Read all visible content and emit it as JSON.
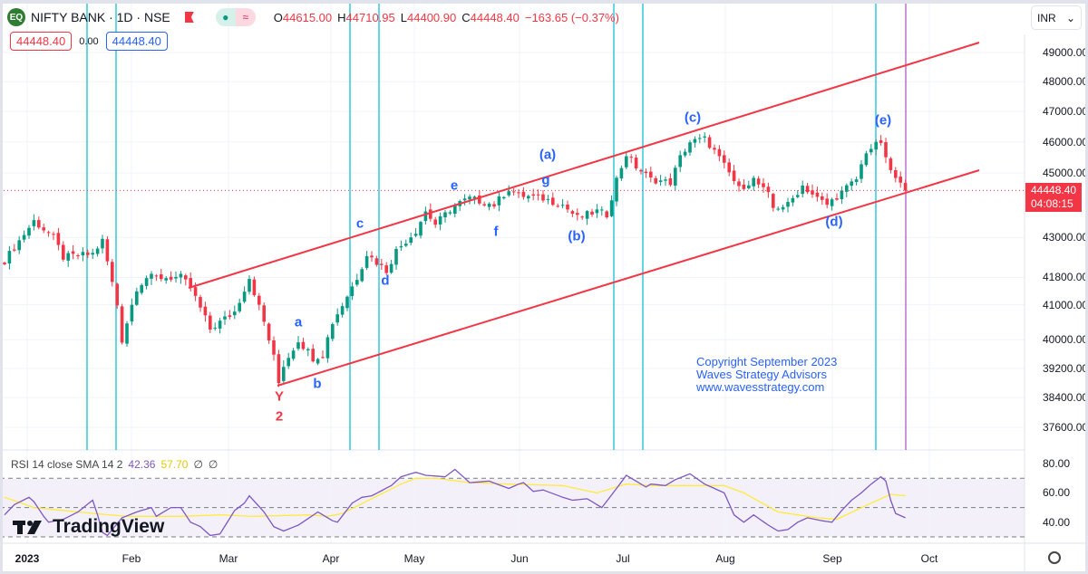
{
  "header": {
    "symbol": "NIFTY BANK · 1D · NSE",
    "logo_text": "EQ",
    "open_label": "O",
    "open": "44615.00",
    "high_label": "H",
    "high": "44710.95",
    "low_label": "L",
    "low": "44400.90",
    "close_label": "C",
    "close": "44448.40",
    "change": "−163.65 (−0.37%)",
    "market_status_icon": "●",
    "indicator_icon": "≈"
  },
  "order": {
    "sell_price": "44448.40",
    "spread": "0.00",
    "buy_price": "44448.40"
  },
  "currency": {
    "label": "INR",
    "chevron": "⌄"
  },
  "price_axis": {
    "ticks": [
      "49000.00",
      "48000.00",
      "47000.00",
      "46000.00",
      "45000.00",
      "43000.00",
      "41800.00",
      "41000.00",
      "40000.00",
      "39200.00",
      "38400.00",
      "37600.00"
    ],
    "last_price": "44448.40",
    "countdown": "04:08:15"
  },
  "rsi": {
    "label": "RSI 14 close SMA 14 2",
    "rsi_value": "42.36",
    "sma_value": "57.70",
    "extra1": "∅",
    "extra2": "∅",
    "ticks": [
      "80.00",
      "60.00",
      "40.00"
    ]
  },
  "time_axis": {
    "labels": [
      "2023",
      "Feb",
      "Mar",
      "Apr",
      "May",
      "Jun",
      "Jul",
      "Aug",
      "Sep",
      "Oct"
    ]
  },
  "branding": {
    "name": "TradingView"
  },
  "annotations": {
    "a": "a",
    "b": "b",
    "Y": "Y",
    "two": "2",
    "c": "c",
    "d": "d",
    "e": "e",
    "f": "f",
    "g": "g",
    "pa": "(a)",
    "pb": "(b)",
    "pc": "(c)",
    "pd": "(d)",
    "pe": "(e)"
  },
  "copyright": {
    "line1": "Copyright September 2023",
    "line2": "Waves Strategy Advisors",
    "line3": "www.wavesstrategy.com"
  },
  "colors": {
    "up": "#089981",
    "down": "#f23645",
    "channel": "#f23645",
    "cycle": "#00bcd4",
    "rsi": "#7e57c2",
    "sma": "#ffeb3b"
  },
  "chart_data": {
    "type": "candlestick",
    "days": 185,
    "close_keypoints": [
      [
        0,
        42300
      ],
      [
        6,
        43500
      ],
      [
        10,
        43000
      ],
      [
        12,
        42400
      ],
      [
        18,
        42500
      ],
      [
        20,
        42900
      ],
      [
        23,
        41000
      ],
      [
        24,
        40000
      ],
      [
        27,
        41500
      ],
      [
        29,
        41800
      ],
      [
        36,
        41800
      ],
      [
        38,
        41500
      ],
      [
        42,
        40300
      ],
      [
        47,
        40800
      ],
      [
        50,
        41800
      ],
      [
        53,
        40500
      ],
      [
        55,
        39500
      ],
      [
        56,
        38800
      ],
      [
        57,
        39300
      ],
      [
        60,
        40000
      ],
      [
        63,
        39500
      ],
      [
        65,
        39600
      ],
      [
        67,
        40500
      ],
      [
        69,
        41000
      ],
      [
        72,
        41800
      ],
      [
        74,
        42500
      ],
      [
        78,
        42000
      ],
      [
        80,
        42600
      ],
      [
        84,
        43200
      ],
      [
        86,
        43800
      ],
      [
        88,
        43400
      ],
      [
        92,
        44000
      ],
      [
        95,
        44200
      ],
      [
        100,
        44000
      ],
      [
        103,
        44500
      ],
      [
        105,
        44300
      ],
      [
        110,
        44200
      ],
      [
        114,
        44000
      ],
      [
        117,
        43600
      ],
      [
        121,
        43800
      ],
      [
        123,
        43700
      ],
      [
        125,
        44800
      ],
      [
        127,
        45600
      ],
      [
        129,
        45200
      ],
      [
        132,
        44800
      ],
      [
        136,
        44700
      ],
      [
        138,
        45500
      ],
      [
        140,
        46000
      ],
      [
        143,
        46100
      ],
      [
        145,
        45700
      ],
      [
        148,
        45000
      ],
      [
        150,
        44500
      ],
      [
        153,
        44800
      ],
      [
        156,
        44300
      ],
      [
        157,
        43900
      ],
      [
        160,
        44000
      ],
      [
        163,
        44600
      ],
      [
        166,
        44200
      ],
      [
        168,
        44000
      ],
      [
        171,
        44400
      ],
      [
        174,
        44800
      ],
      [
        176,
        45700
      ],
      [
        178,
        45900
      ],
      [
        179,
        46000
      ],
      [
        180,
        45400
      ],
      [
        182,
        44800
      ],
      [
        184,
        44448
      ]
    ],
    "rsi_keypoints": [
      [
        0,
        45
      ],
      [
        2,
        52
      ],
      [
        5,
        57
      ],
      [
        6,
        54
      ],
      [
        8,
        44
      ],
      [
        9,
        40
      ],
      [
        12,
        42
      ],
      [
        15,
        47
      ],
      [
        18,
        55
      ],
      [
        19,
        45
      ],
      [
        20,
        33
      ],
      [
        21,
        31
      ],
      [
        24,
        43
      ],
      [
        27,
        47
      ],
      [
        30,
        50
      ],
      [
        31,
        44
      ],
      [
        34,
        50
      ],
      [
        36,
        50
      ],
      [
        38,
        40
      ],
      [
        40,
        37
      ],
      [
        42,
        31
      ],
      [
        44,
        32
      ],
      [
        47,
        48
      ],
      [
        49,
        53
      ],
      [
        50,
        58
      ],
      [
        53,
        47
      ],
      [
        55,
        37
      ],
      [
        57,
        34
      ],
      [
        60,
        38
      ],
      [
        64,
        47
      ],
      [
        67,
        41
      ],
      [
        68,
        40
      ],
      [
        71,
        53
      ],
      [
        73,
        57
      ],
      [
        75,
        58
      ],
      [
        79,
        65
      ],
      [
        81,
        71
      ],
      [
        84,
        74
      ],
      [
        86,
        72
      ],
      [
        90,
        71
      ],
      [
        92,
        76
      ],
      [
        95,
        67
      ],
      [
        99,
        68
      ],
      [
        103,
        63
      ],
      [
        105,
        66
      ],
      [
        106,
        67
      ],
      [
        108,
        61
      ],
      [
        110,
        62
      ],
      [
        114,
        57
      ],
      [
        116,
        55
      ],
      [
        119,
        56
      ],
      [
        122,
        50
      ],
      [
        125,
        63
      ],
      [
        127,
        72
      ],
      [
        129,
        68
      ],
      [
        131,
        64
      ],
      [
        132,
        66
      ],
      [
        135,
        65
      ],
      [
        137,
        69
      ],
      [
        140,
        73
      ],
      [
        143,
        66
      ],
      [
        145,
        63
      ],
      [
        147,
        60
      ],
      [
        149,
        45
      ],
      [
        151,
        40
      ],
      [
        153,
        45
      ],
      [
        156,
        38
      ],
      [
        158,
        34
      ],
      [
        160,
        35
      ],
      [
        162,
        40
      ],
      [
        164,
        43
      ],
      [
        167,
        41
      ],
      [
        169,
        40
      ],
      [
        171,
        48
      ],
      [
        173,
        55
      ],
      [
        175,
        60
      ],
      [
        177,
        66
      ],
      [
        179,
        71
      ],
      [
        180,
        68
      ],
      [
        181,
        55
      ],
      [
        182,
        46
      ],
      [
        184,
        43
      ]
    ],
    "sma_keypoints": [
      [
        0,
        57
      ],
      [
        6,
        50
      ],
      [
        18,
        46
      ],
      [
        25,
        44
      ],
      [
        36,
        44
      ],
      [
        44,
        45
      ],
      [
        51,
        44
      ],
      [
        62,
        45
      ],
      [
        66,
        44
      ],
      [
        69,
        46
      ],
      [
        75,
        56
      ],
      [
        81,
        66
      ],
      [
        84,
        70
      ],
      [
        88,
        70
      ],
      [
        95,
        67
      ],
      [
        103,
        66
      ],
      [
        114,
        65
      ],
      [
        121,
        60
      ],
      [
        127,
        66
      ],
      [
        132,
        65
      ],
      [
        147,
        65
      ],
      [
        151,
        60
      ],
      [
        158,
        47
      ],
      [
        166,
        43
      ],
      [
        170,
        42
      ],
      [
        177,
        53
      ],
      [
        181,
        59
      ],
      [
        184,
        58
      ]
    ],
    "price_range": [
      37600,
      49000
    ],
    "price_scale": "log",
    "rsi_range": [
      30,
      80
    ],
    "rsi_bands": [
      70,
      50,
      30
    ]
  }
}
